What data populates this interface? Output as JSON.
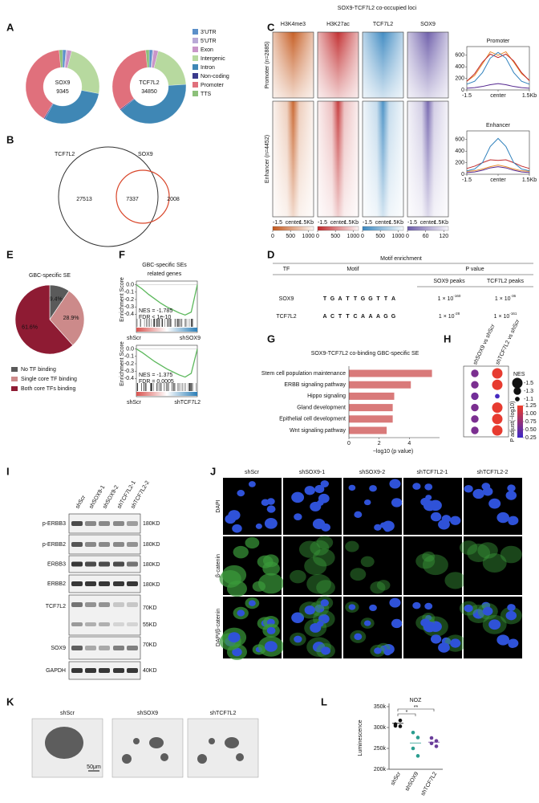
{
  "title": "SOX9-TCF7L2 co-occupied loci",
  "panel_labels": [
    "A",
    "B",
    "C",
    "D",
    "E",
    "F",
    "G",
    "H",
    "I",
    "J",
    "K",
    "L"
  ],
  "A": {
    "legend": [
      "3'UTR",
      "5'UTR",
      "Exon",
      "Intergenic",
      "Intron",
      "Non-coding",
      "Promoter",
      "TTS"
    ],
    "colors": [
      "#5b8fc9",
      "#b9a9d6",
      "#c995c8",
      "#b7d99f",
      "#3f87b5",
      "#3b3a8c",
      "#e0707c",
      "#8cc07a"
    ],
    "charts": [
      {
        "name": "SOX9",
        "count": "9345",
        "values": [
          1.5,
          0.5,
          2,
          24,
          30,
          0.5,
          40,
          1.5
        ]
      },
      {
        "name": "TCF7L2",
        "count": "34850",
        "values": [
          1.5,
          0.5,
          2,
          20,
          40,
          0.5,
          34,
          1.5
        ]
      }
    ]
  },
  "B": {
    "sets": [
      "TCF7L2",
      "SOX9"
    ],
    "counts": [
      "27513",
      "7337",
      "2008"
    ]
  },
  "C": {
    "columns": [
      "H3K4me3",
      "H3K27ac",
      "TCF7L2",
      "SOX9"
    ],
    "rows": [
      "Promoter (n=2885)",
      "Enhancer (n=4452)"
    ],
    "colors": [
      "#c4581c",
      "#c0282a",
      "#3a87c0",
      "#6a5aa8"
    ],
    "heatmap_xticks": [
      "-1.5",
      "center",
      "1.5Kb"
    ],
    "colorbar_lims": [
      [
        0,
        1150
      ],
      [
        0,
        1150
      ],
      [
        0,
        1150
      ],
      [
        0,
        135
      ]
    ],
    "colorbar_ticks": [
      [
        0,
        500,
        1000
      ],
      [
        0,
        500,
        1000
      ],
      [
        0,
        500,
        1000
      ],
      [
        0,
        60,
        120
      ]
    ],
    "x": [
      -1.5,
      -1.125,
      -0.75,
      -0.375,
      0,
      0.375,
      0.75,
      1.125,
      1.5
    ],
    "xlim": [
      -1.5,
      1.5
    ],
    "xticks": [
      -1.5,
      {
        "value": 0,
        "label": "center"
      },
      {
        "value": 1.5,
        "label": "1.5Kb"
      }
    ],
    "ylim": [
      0,
      750
    ],
    "yticks": [
      0,
      200,
      400,
      600
    ],
    "line_colors": [
      "#e8892b",
      "#c0282a",
      "#3182bd",
      "#54278f"
    ],
    "profiles": [
      {
        "title": "Promoter",
        "series": [
          {
            "values": [
              150,
              250,
              450,
              660,
              600,
              660,
              480,
              280,
              170
            ]
          },
          {
            "values": [
              150,
              280,
              480,
              620,
              560,
              620,
              500,
              300,
              160
            ]
          },
          {
            "values": [
              100,
              150,
              300,
              550,
              650,
              550,
              300,
              150,
              100
            ]
          },
          {
            "values": [
              30,
              40,
              60,
              90,
              110,
              90,
              60,
              40,
              30
            ]
          }
        ]
      },
      {
        "title": "Enhancer",
        "series": [
          {
            "values": [
              50,
              60,
              90,
              130,
              160,
              130,
              90,
              60,
              50
            ]
          },
          {
            "values": [
              100,
              140,
              200,
              250,
              240,
              250,
              200,
              140,
              100
            ]
          },
          {
            "values": [
              60,
              90,
              200,
              480,
              620,
              480,
              200,
              90,
              60
            ]
          },
          {
            "values": [
              30,
              40,
              70,
              110,
              130,
              110,
              70,
              40,
              30
            ]
          }
        ]
      }
    ]
  },
  "D": {
    "title": "Motif enrichment",
    "headers": [
      "TF",
      "Motif",
      "P value"
    ],
    "subheaders": [
      "SOX9 peaks",
      "TCF7L2 peaks"
    ],
    "rows": [
      {
        "tf": "SOX9",
        "motif": [
          "T",
          "G",
          "A",
          "T",
          "T",
          "G",
          "G",
          "T",
          "T",
          "A"
        ],
        "p": [
          {
            "base": "1 × 10",
            "exp": "-160"
          },
          {
            "base": "1 × 10",
            "exp": "-36"
          }
        ]
      },
      {
        "tf": "TCF7L2",
        "motif": [
          "A",
          "C",
          "T",
          "T",
          "C",
          "A",
          "A",
          "A",
          "G",
          "G"
        ],
        "p": [
          {
            "base": "1 × 10",
            "exp": "-28"
          },
          {
            "base": "1 × 10",
            "exp": "-161"
          }
        ]
      }
    ]
  },
  "E": {
    "title": "GBC-specific SE",
    "values": [
      9.4,
      28.9,
      61.6
    ],
    "value_labels": [
      "9.4%",
      "28.9%",
      "61.6%"
    ],
    "legend": [
      "No TF binding",
      "Single core TF binding",
      "Both core TFs binding"
    ],
    "colors": [
      "#5a5a5a",
      "#cc8a8a",
      "#8e1b33"
    ]
  },
  "F": {
    "title": [
      "GBC-specific SEs",
      "related genes"
    ],
    "ylabel": "Enrichment Score",
    "ylim": [
      -0.45,
      0.05
    ],
    "yticks": [
      {
        "value": 0,
        "label": "0.0"
      },
      -0.1,
      -0.2,
      -0.3,
      -0.4
    ],
    "color": "#5cb85c",
    "plots": [
      {
        "values": [
          0,
          -0.06,
          -0.13,
          -0.19,
          -0.25,
          -0.3,
          -0.34,
          -0.38,
          -0.41,
          -0.37,
          0
        ],
        "stats": [
          "NES = -1.785",
          "FDR < 1e-10"
        ],
        "groups": [
          "shScr",
          "shSOX9"
        ]
      },
      {
        "values": [
          0,
          -0.05,
          -0.11,
          -0.17,
          -0.22,
          -0.27,
          -0.31,
          -0.35,
          -0.38,
          -0.33,
          0
        ],
        "stats": [
          "NES = -1.375",
          "FDR = 0.0005"
        ],
        "groups": [
          "shScr",
          "shTCF7L2"
        ]
      }
    ]
  },
  "G": {
    "title": "SOX9-TCF7L2 co-binding GBC-specific SE",
    "categories": [
      "Stem cell population maintenance",
      "ERBB signaling pathway",
      "Hippo signaling",
      "Gland development",
      "Epithelial cell development",
      "Wnt signaling pathway"
    ],
    "values": [
      5.5,
      4.1,
      3.0,
      2.9,
      2.9,
      2.5
    ],
    "xlim": [
      0,
      6
    ],
    "xticks": [
      0,
      2,
      4
    ],
    "xlabel": "−log10 (p value)",
    "color": "#d97a7a"
  },
  "H": {
    "columns": [
      "shSOX9 vs shScr",
      "shTCF7L2 vs shScr"
    ],
    "nes": [
      [
        -1.3,
        -1.3,
        -1.3,
        -1.3,
        -1.3,
        -1.3
      ],
      [
        -1.5,
        -1.5,
        -1.1,
        -1.5,
        -1.5,
        -1.5
      ]
    ],
    "padj": [
      [
        0.6,
        0.6,
        0.55,
        0.6,
        0.6,
        0.6
      ],
      [
        1.2,
        1.2,
        0.3,
        1.2,
        1.2,
        1.2
      ]
    ],
    "size_title": "NES",
    "size_ticks": [
      -1.5,
      -1.3,
      -1.1
    ],
    "color_title": "P adjust(−log10)",
    "color_lim": [
      0.25,
      1.25
    ],
    "color_ticks": [
      1.25,
      {
        "value": 1,
        "label": "1.00"
      },
      0.75,
      {
        "value": 0.5,
        "label": "0.50"
      },
      0.25
    ]
  },
  "I": {
    "lanes": [
      "shScr",
      "shSOX9-1",
      "shSOX9-2",
      "shTCF7L2-1",
      "shTCF7L2-2"
    ],
    "bands": [
      "p-ERBB3",
      "p-ERBB2",
      "ERBB3",
      "ERBB2",
      "TCF7L2",
      "SOX9",
      "GAPDH"
    ],
    "markers": [
      "180KD",
      "180KD",
      "180KD",
      "180KD",
      "70KD",
      "55KD",
      "70KD",
      "40KD"
    ]
  },
  "J": {
    "columns": [
      "shScr",
      "shSOX9-1",
      "shSOX9-2",
      "shTCF7L2-1",
      "shTCF7L2-2"
    ],
    "rows": [
      "DAPI",
      "β-catenin",
      "DAPI/β-catenin"
    ]
  },
  "K": {
    "samples": [
      "shScr",
      "shSOX9",
      "shTCF7L2"
    ],
    "scale": "50μm"
  },
  "L": {
    "title": "NOZ",
    "ylabel": "Luminescence",
    "categories": [
      "shScr",
      "shSOX9",
      "shTCF7L2"
    ],
    "points": [
      [
        308000,
        303000,
        304000,
        317000
      ],
      [
        288000,
        276000,
        250000,
        232000
      ],
      [
        275000,
        268000,
        262000,
        255000
      ]
    ],
    "means": [
      310000,
      263000,
      265000
    ],
    "colors": [
      "#111111",
      "#2a9d8f",
      "#6a3d9a"
    ],
    "ylim": [
      200000,
      350000
    ],
    "yticks": [
      {
        "value": 200000,
        "label": "200k"
      },
      {
        "value": 250000,
        "label": "250k"
      },
      {
        "value": 300000,
        "label": "300k"
      },
      {
        "value": 350000,
        "label": "350k"
      }
    ],
    "significance": [
      "*",
      "**"
    ]
  }
}
